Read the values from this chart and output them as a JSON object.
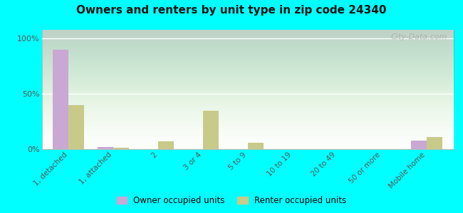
{
  "title": "Owners and renters by unit type in zip code 24340",
  "categories": [
    "1, detached",
    "1, attached",
    "2",
    "3 or 4",
    "5 to 9",
    "10 to 19",
    "20 to 49",
    "50 or more",
    "Mobile home"
  ],
  "owner_values": [
    90,
    2,
    0,
    0,
    0,
    0,
    0,
    0,
    8
  ],
  "renter_values": [
    40,
    1,
    7,
    35,
    6,
    0,
    0,
    0,
    11
  ],
  "owner_color": "#c9a8d4",
  "renter_color": "#c8ca8a",
  "outer_bg": "#00ffff",
  "title_fontsize": 11,
  "ylabel_ticks": [
    "0%",
    "50%",
    "100%"
  ],
  "yticks": [
    0,
    50,
    100
  ],
  "ylim": [
    0,
    108
  ],
  "legend_labels": [
    "Owner occupied units",
    "Renter occupied units"
  ],
  "watermark": "City-Data.com",
  "plot_bg_colors": [
    "#f0f8ee",
    "#daeeda"
  ],
  "bar_width": 0.35
}
